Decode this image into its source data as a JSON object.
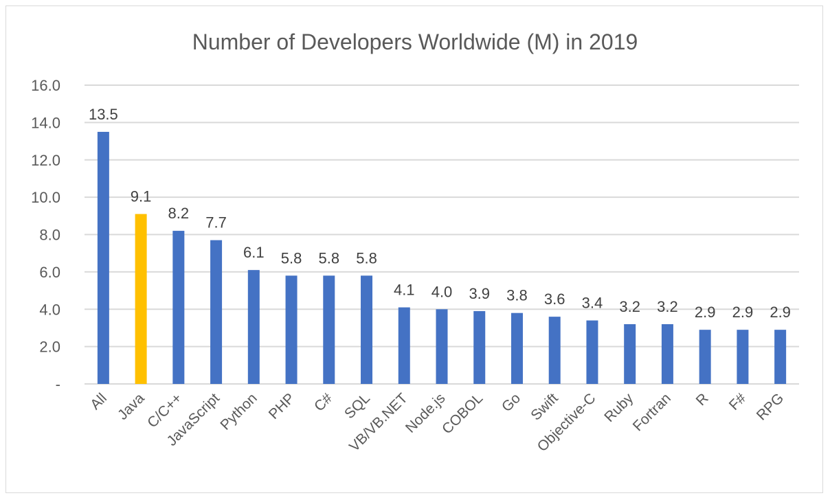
{
  "chart_data": {
    "type": "bar",
    "title": "Number of Developers Worldwide (M) in 2019",
    "xlabel": "",
    "ylabel": "",
    "ylim": [
      0,
      16
    ],
    "y_ticks": [
      0,
      2,
      4,
      6,
      8,
      10,
      12,
      14,
      16
    ],
    "y_tick_labels": [
      "-",
      "2.0",
      "4.0",
      "6.0",
      "8.0",
      "10.0",
      "12.0",
      "14.0",
      "16.0"
    ],
    "grid": true,
    "legend": "none",
    "categories": [
      "All",
      "Java",
      "C/C++",
      "JavaScript",
      "Python",
      "PHP",
      "C#",
      "SQL",
      "VB/VB.NET",
      "Node.js",
      "COBOL",
      "Go",
      "Swift",
      "Objective-C",
      "Ruby",
      "Fortran",
      "R",
      "F#",
      "RPG"
    ],
    "values": [
      13.5,
      9.1,
      8.2,
      7.7,
      6.1,
      5.8,
      5.8,
      5.8,
      4.1,
      4.0,
      3.9,
      3.8,
      3.6,
      3.4,
      3.2,
      3.2,
      2.9,
      2.9,
      2.9
    ],
    "data_labels": [
      "13.5",
      "9.1",
      "8.2",
      "7.7",
      "6.1",
      "5.8",
      "5.8",
      "5.8",
      "4.1",
      "4.0",
      "3.9",
      "3.8",
      "3.6",
      "3.4",
      "3.2",
      "3.2",
      "2.9",
      "2.9",
      "2.9"
    ],
    "colors": {
      "default": "#4472C4",
      "highlight": "#FFC000",
      "grid": "#d9d9d9",
      "text": "#595959"
    },
    "highlight_category": "Java"
  }
}
